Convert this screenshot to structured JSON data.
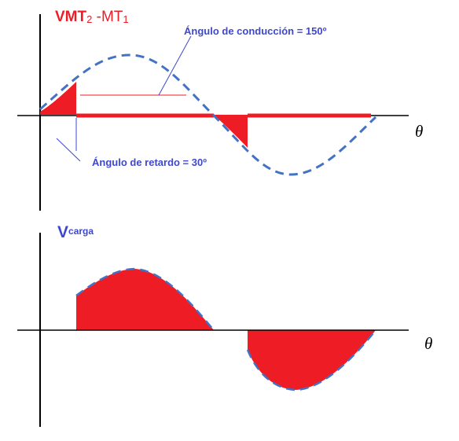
{
  "top_panel": {
    "title_main": "VMT",
    "title_sub1": "2",
    "title_mid": " -MT",
    "title_sub2": "1",
    "conduction_label": "Ángulo de conducción = 150º",
    "delay_label": "Ángulo de retardo = 30º",
    "axis_symbol": "θ"
  },
  "bottom_panel": {
    "title_main": "V",
    "title_sub": "carga",
    "axis_symbol": "θ"
  },
  "colors": {
    "fill_red": "#ee1c25",
    "sine_blue": "#4472c4",
    "label_blue": "#3f48cc",
    "axis": "#000000"
  },
  "waveform": {
    "delay_angle_deg": 30,
    "conduction_angle_deg": 150
  }
}
